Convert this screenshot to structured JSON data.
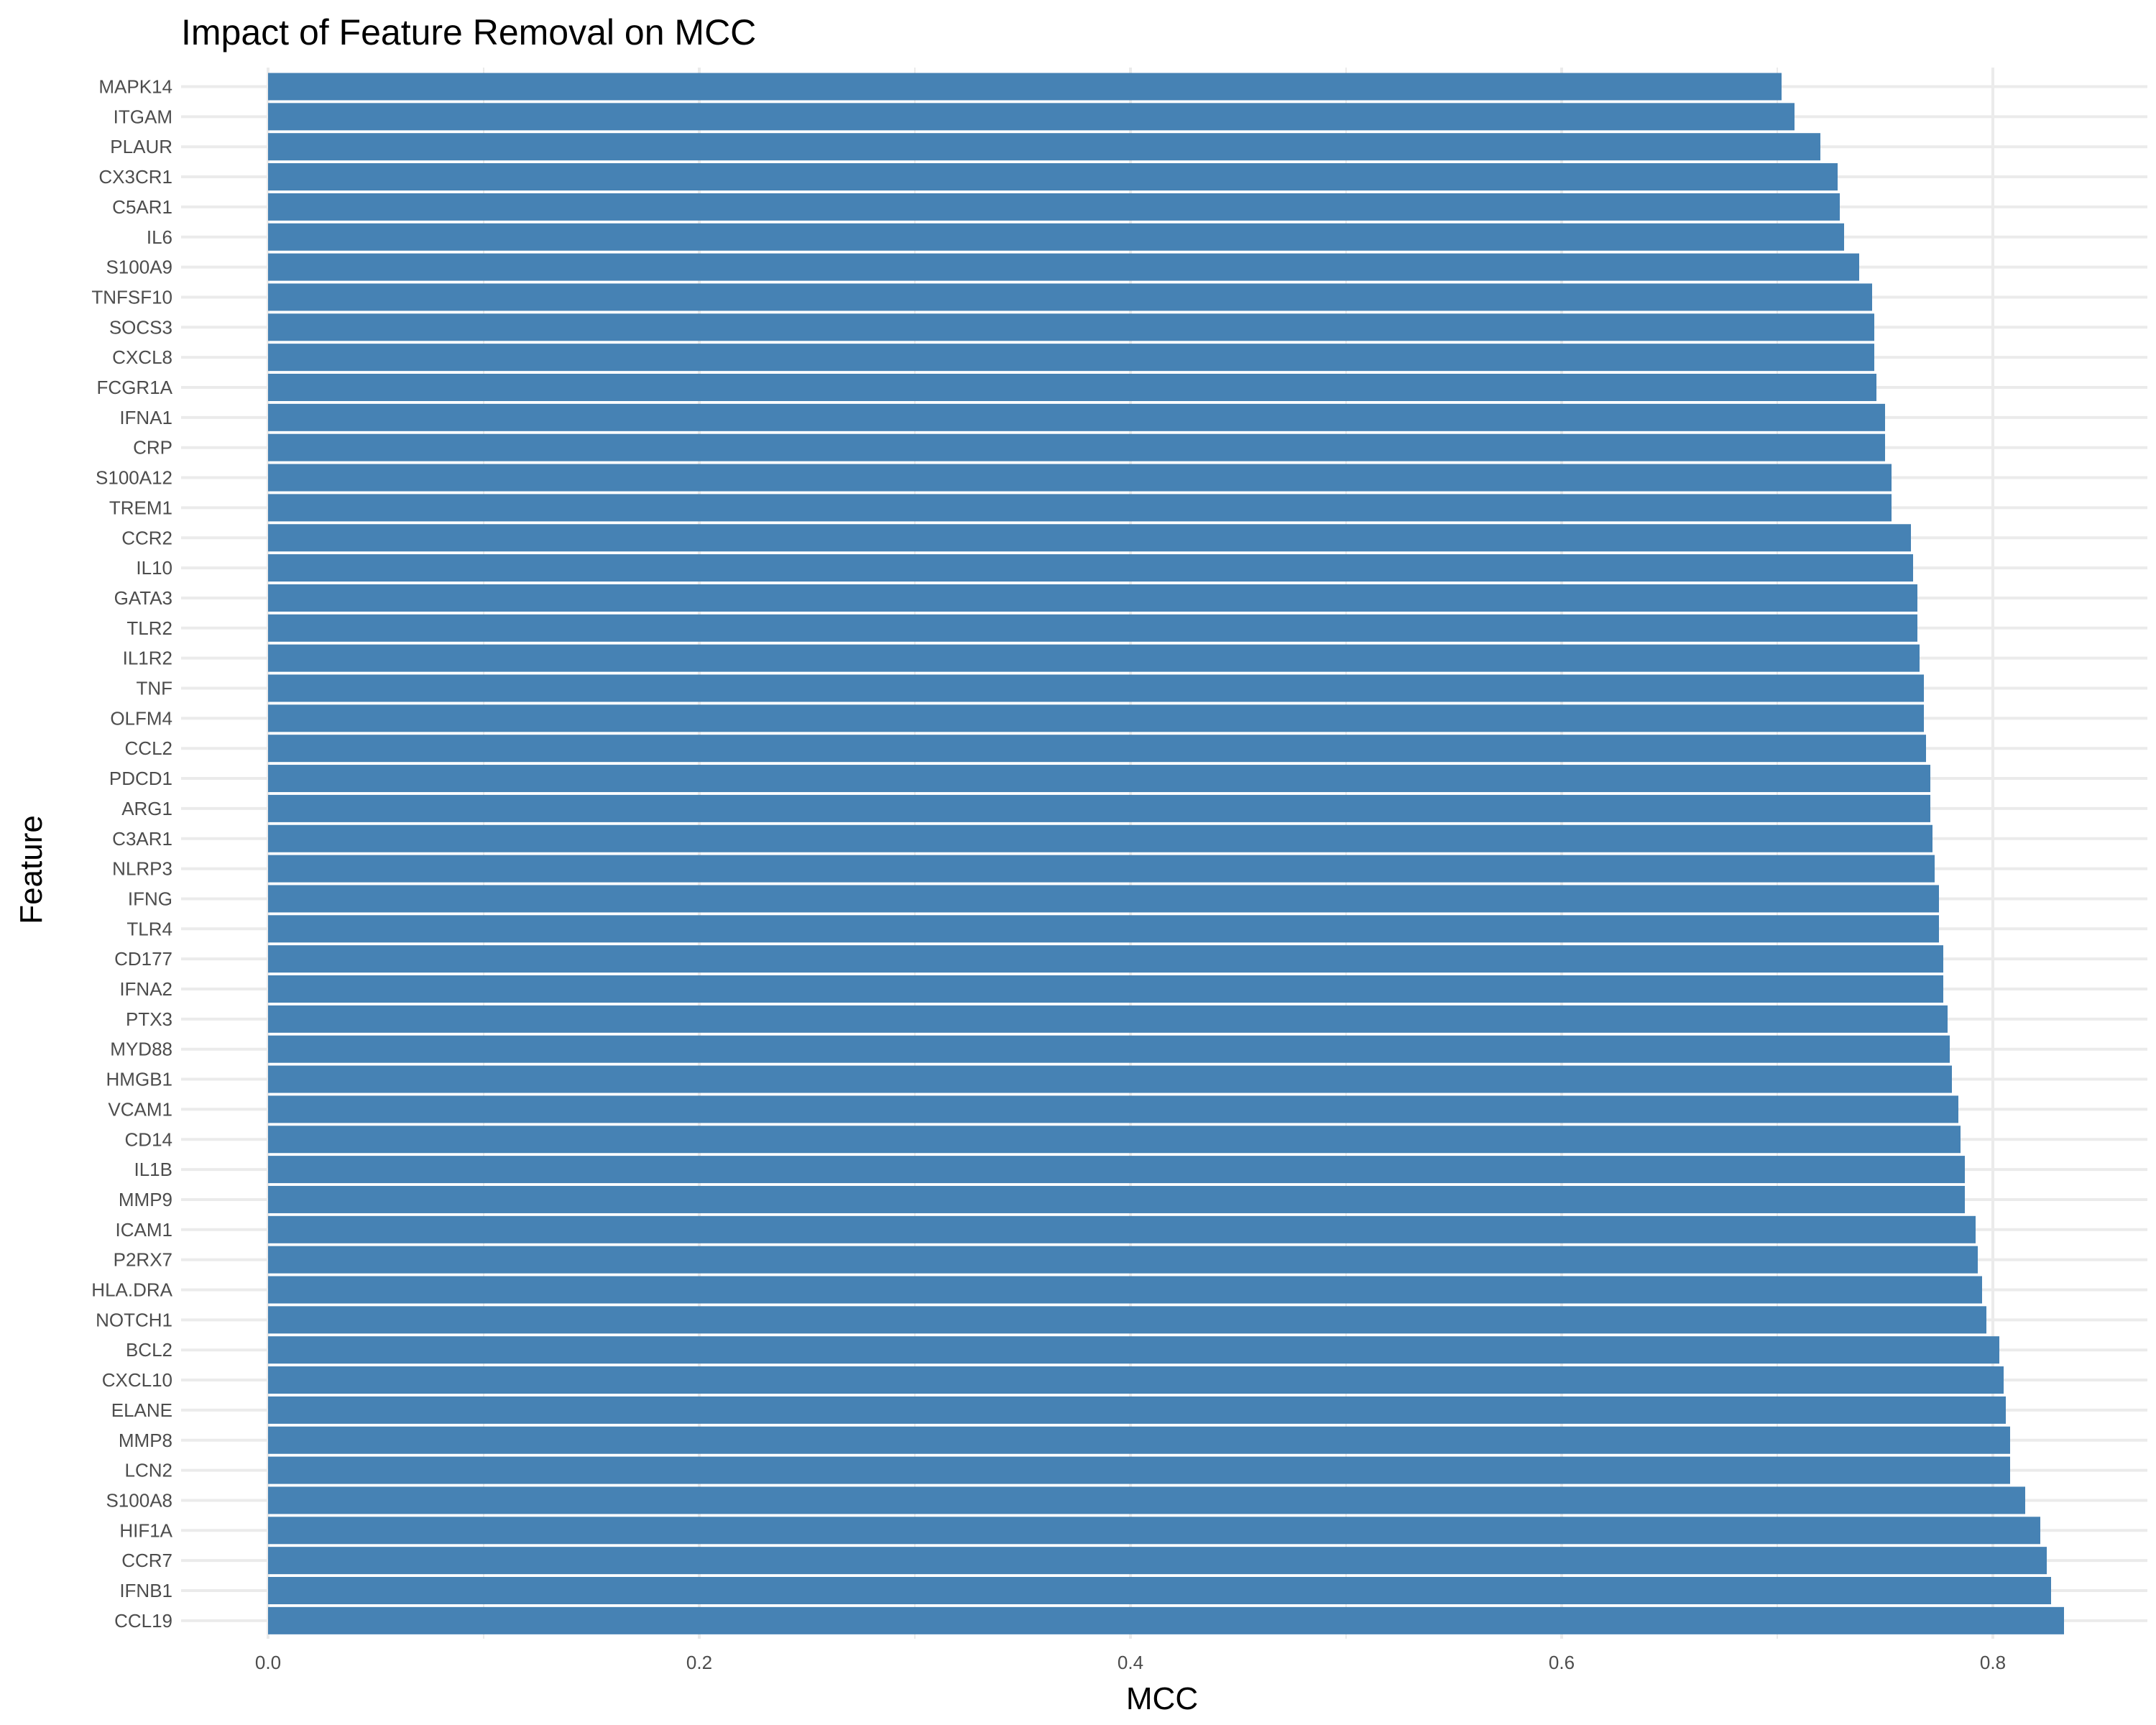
{
  "chart_data": {
    "type": "bar",
    "orientation": "horizontal",
    "title": "Impact of Feature Removal on MCC",
    "xlabel": "MCC",
    "ylabel": "Feature",
    "xlim": [
      -0.04,
      0.87
    ],
    "x_ticks": [
      0.0,
      0.2,
      0.4,
      0.6,
      0.8
    ],
    "x_tick_labels": [
      "0.0",
      "0.2",
      "0.4",
      "0.6",
      "0.8"
    ],
    "grid": true,
    "bar_color": "#4682B4",
    "categories": [
      "MAPK14",
      "ITGAM",
      "PLAUR",
      "CX3CR1",
      "C5AR1",
      "IL6",
      "S100A9",
      "TNFSF10",
      "SOCS3",
      "CXCL8",
      "FCGR1A",
      "IFNA1",
      "CRP",
      "S100A12",
      "TREM1",
      "CCR2",
      "IL10",
      "GATA3",
      "TLR2",
      "IL1R2",
      "TNF",
      "OLFM4",
      "CCL2",
      "PDCD1",
      "ARG1",
      "C3AR1",
      "NLRP3",
      "IFNG",
      "TLR4",
      "CD177",
      "IFNA2",
      "PTX3",
      "MYD88",
      "HMGB1",
      "VCAM1",
      "CD14",
      "IL1B",
      "MMP9",
      "ICAM1",
      "P2RX7",
      "HLA.DRA",
      "NOTCH1",
      "BCL2",
      "CXCL10",
      "ELANE",
      "MMP8",
      "LCN2",
      "S100A8",
      "HIF1A",
      "CCR7",
      "IFNB1",
      "CCL19"
    ],
    "values": [
      0.702,
      0.708,
      0.72,
      0.728,
      0.729,
      0.731,
      0.738,
      0.744,
      0.745,
      0.745,
      0.746,
      0.75,
      0.75,
      0.753,
      0.753,
      0.762,
      0.763,
      0.765,
      0.765,
      0.766,
      0.768,
      0.768,
      0.769,
      0.771,
      0.771,
      0.772,
      0.773,
      0.775,
      0.775,
      0.777,
      0.777,
      0.779,
      0.78,
      0.781,
      0.784,
      0.785,
      0.787,
      0.787,
      0.792,
      0.793,
      0.795,
      0.797,
      0.803,
      0.805,
      0.806,
      0.808,
      0.808,
      0.815,
      0.822,
      0.825,
      0.827,
      0.833
    ]
  }
}
